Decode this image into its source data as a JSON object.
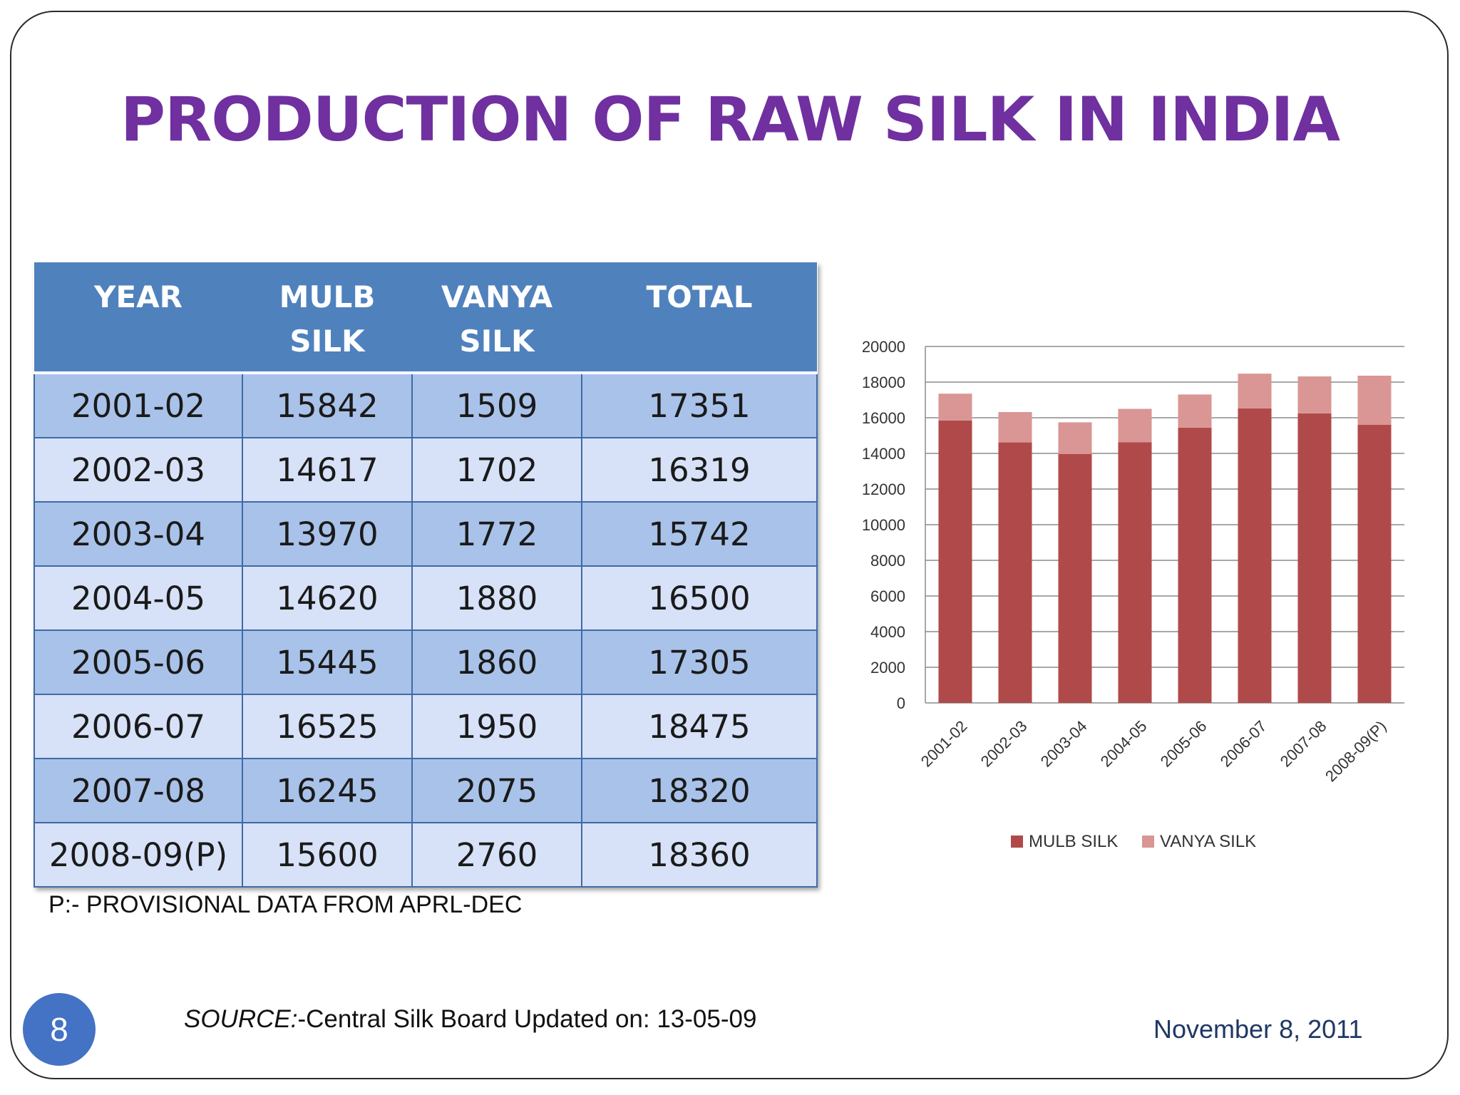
{
  "slide": {
    "title": "PRODUCTION OF RAW SILK IN INDIA",
    "note": "P:- PROVISIONAL DATA FROM APRL-DEC",
    "source_prefix": "SOURCE:",
    "source_text": "-Central Silk Board Updated on: 13-05-09",
    "date": "November 8, 2011",
    "page_number": "8"
  },
  "table": {
    "headers": [
      [
        "YEAR"
      ],
      [
        "MULB",
        "SILK"
      ],
      [
        "VANYA",
        "SILK"
      ],
      [
        "TOTAL"
      ]
    ],
    "rows": [
      [
        "2001-02",
        "15842",
        "1509",
        "17351"
      ],
      [
        "2002-03",
        "14617",
        "1702",
        "16319"
      ],
      [
        "2003-04",
        "13970",
        "1772",
        "15742"
      ],
      [
        "2004-05",
        "14620",
        "1880",
        "16500"
      ],
      [
        "2005-06",
        "15445",
        "1860",
        "17305"
      ],
      [
        "2006-07",
        "16525",
        "1950",
        "18475"
      ],
      [
        "2007-08",
        "16245",
        "2075",
        "18320"
      ],
      [
        "2008-09(P)",
        "15600",
        "2760",
        "18360"
      ]
    ]
  },
  "chart_data": {
    "type": "bar",
    "stacked": true,
    "categories": [
      "2001-02",
      "2002-03",
      "2003-04",
      "2004-05",
      "2005-06",
      "2006-07",
      "2007-08",
      "2008-09(P)"
    ],
    "series": [
      {
        "name": "MULB SILK",
        "values": [
          15842,
          14617,
          13970,
          14620,
          15445,
          16525,
          16245,
          15600
        ],
        "color": "#b04a4a"
      },
      {
        "name": "VANYA SILK",
        "values": [
          1509,
          1702,
          1772,
          1880,
          1860,
          1950,
          2075,
          2760
        ],
        "color": "#d99694"
      }
    ],
    "ylim": [
      0,
      20000
    ],
    "yticks": [
      0,
      2000,
      4000,
      6000,
      8000,
      10000,
      12000,
      14000,
      16000,
      18000,
      20000
    ],
    "grid": true,
    "legend": "bottom"
  }
}
